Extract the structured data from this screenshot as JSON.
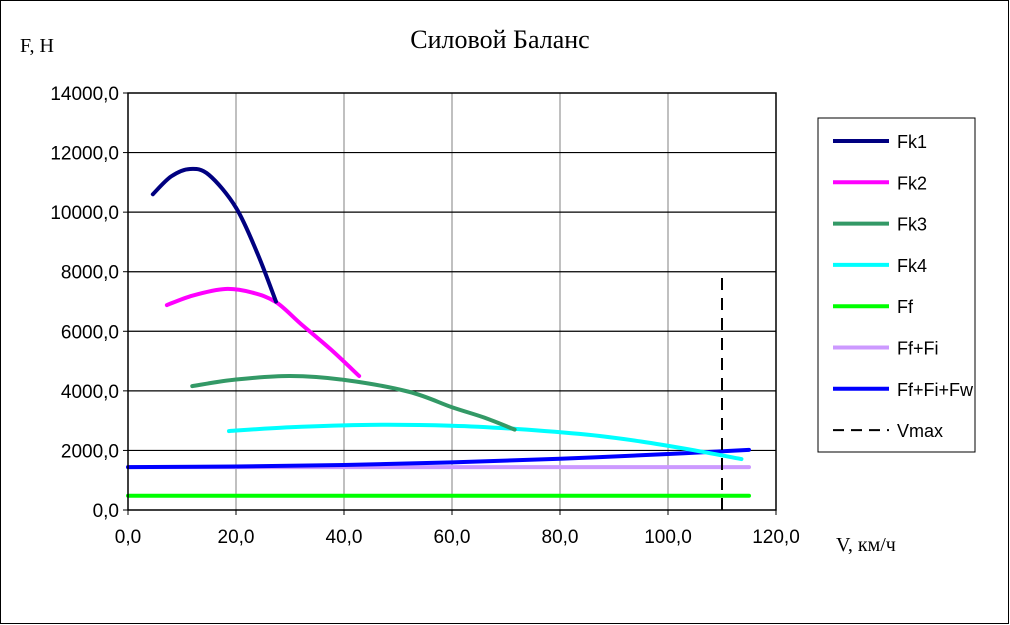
{
  "chart_data": {
    "type": "line",
    "title": "Силовой Баланс",
    "xlabel": "V, км/ч",
    "ylabel": "F, Н",
    "xlim": [
      0,
      120
    ],
    "ylim": [
      0,
      14000
    ],
    "xticks": [
      "0,0",
      "20,0",
      "40,0",
      "60,0",
      "80,0",
      "100,0",
      "120,0"
    ],
    "yticks": [
      "0,0",
      "2000,0",
      "4000,0",
      "6000,0",
      "8000,0",
      "10000,0",
      "12000,0",
      "14000,0"
    ],
    "grid": true,
    "legend_position": "right",
    "series": [
      {
        "name": "Fk1",
        "color": "#000080",
        "points": [
          [
            4.6,
            10600
          ],
          [
            8,
            11200
          ],
          [
            11.5,
            11450
          ],
          [
            15,
            11250
          ],
          [
            20,
            10150
          ],
          [
            24,
            8600
          ],
          [
            27.4,
            7000
          ]
        ]
      },
      {
        "name": "Fk2",
        "color": "#ff00ff",
        "points": [
          [
            7.2,
            6880
          ],
          [
            12,
            7200
          ],
          [
            18,
            7420
          ],
          [
            23,
            7300
          ],
          [
            27.4,
            6980
          ],
          [
            32,
            6250
          ],
          [
            37.5,
            5400
          ],
          [
            42.8,
            4500
          ]
        ]
      },
      {
        "name": "Fk3",
        "color": "#339966",
        "points": [
          [
            11.9,
            4160
          ],
          [
            20,
            4380
          ],
          [
            30,
            4500
          ],
          [
            40,
            4370
          ],
          [
            52,
            3970
          ],
          [
            60,
            3450
          ],
          [
            66,
            3100
          ],
          [
            71.6,
            2700
          ]
        ]
      },
      {
        "name": "Fk4",
        "color": "#00ffff",
        "points": [
          [
            18.7,
            2650
          ],
          [
            30,
            2780
          ],
          [
            45,
            2860
          ],
          [
            60,
            2830
          ],
          [
            72,
            2720
          ],
          [
            85,
            2530
          ],
          [
            95,
            2300
          ],
          [
            105,
            2000
          ],
          [
            113.6,
            1710
          ]
        ]
      },
      {
        "name": "Ff",
        "color": "#00ff00",
        "points": [
          [
            0,
            480
          ],
          [
            115,
            480
          ]
        ]
      },
      {
        "name": "Ff+Fi",
        "color": "#cc99ff",
        "points": [
          [
            0,
            1440
          ],
          [
            115,
            1440
          ]
        ]
      },
      {
        "name": "Ff+Fi+Fw",
        "color": "#0000ff",
        "points": [
          [
            0,
            1440
          ],
          [
            20,
            1460
          ],
          [
            40,
            1510
          ],
          [
            60,
            1600
          ],
          [
            80,
            1720
          ],
          [
            100,
            1880
          ],
          [
            115,
            2020
          ]
        ]
      },
      {
        "name": "Vmax",
        "color": "#000000",
        "dashed": true,
        "points": [
          [
            110,
            0
          ],
          [
            110,
            7900
          ]
        ]
      }
    ]
  }
}
